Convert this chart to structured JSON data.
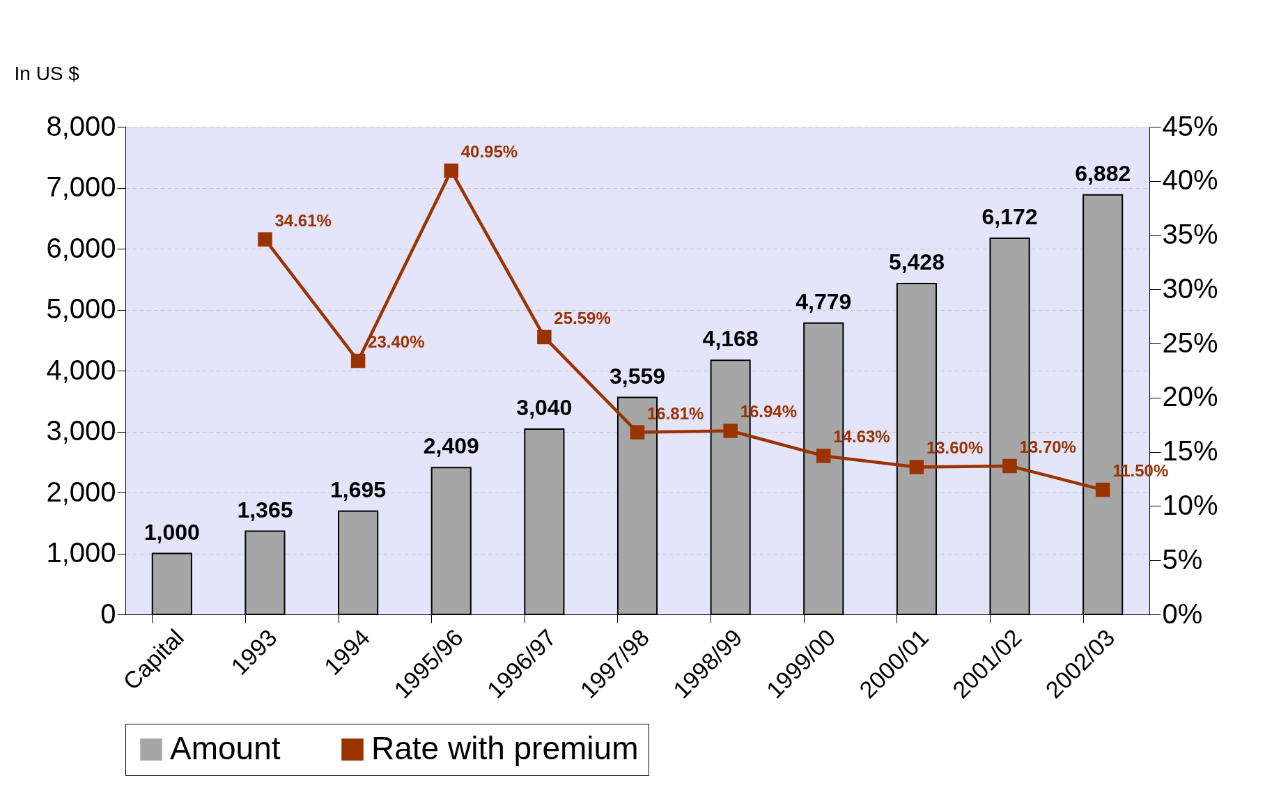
{
  "chart_data": {
    "type": "bar",
    "ylabel": "In US $",
    "categories": [
      "Capital",
      "1993",
      "1994",
      "1995/96",
      "1996/97",
      "1997/98",
      "1998/99",
      "1999/00",
      "2000/01",
      "2001/02",
      "2002/03"
    ],
    "series": [
      {
        "name": "Amount",
        "color": "#a6a6a6",
        "values": [
          1000,
          1365,
          1695,
          2409,
          3040,
          3559,
          4168,
          4779,
          5428,
          6172,
          6882
        ],
        "value_labels": [
          "1,000",
          "1,365",
          "1,695",
          "2,409",
          "3,040",
          "3,559",
          "4,168",
          "4,779",
          "5,428",
          "6,172",
          "6,882"
        ]
      },
      {
        "name": "Rate with premium",
        "type": "line",
        "axis": "y2",
        "color": "#993300",
        "marker": "square",
        "values": [
          null,
          34.61,
          23.4,
          40.95,
          25.59,
          16.81,
          16.94,
          14.63,
          13.6,
          13.7,
          11.5
        ],
        "value_labels": [
          null,
          "34.61%",
          "23.40%",
          "40.95%",
          "25.59%",
          "16.81%",
          "16.94%",
          "14.63%",
          "13.60%",
          "13.70%",
          "11.50%"
        ]
      }
    ],
    "ylim": [
      0,
      8000
    ],
    "yticks": [
      {
        "value": 0,
        "label": "0"
      },
      {
        "value": 1000,
        "label": "1,000"
      },
      {
        "value": 2000,
        "label": "2,000"
      },
      {
        "value": 3000,
        "label": "3,000"
      },
      {
        "value": 4000,
        "label": "4,000"
      },
      {
        "value": 5000,
        "label": "5,000"
      },
      {
        "value": 6000,
        "label": "6,000"
      },
      {
        "value": 7000,
        "label": "7,000"
      },
      {
        "value": 8000,
        "label": "8,000"
      }
    ],
    "y2lim": [
      0,
      45
    ],
    "y2ticks": [
      {
        "value": 0,
        "label": "0%"
      },
      {
        "value": 5,
        "label": "5%"
      },
      {
        "value": 10,
        "label": "10%"
      },
      {
        "value": 15,
        "label": "15%"
      },
      {
        "value": 20,
        "label": "20%"
      },
      {
        "value": 25,
        "label": "25%"
      },
      {
        "value": 30,
        "label": "30%"
      },
      {
        "value": 35,
        "label": "35%"
      },
      {
        "value": 40,
        "label": "40%"
      },
      {
        "value": 45,
        "label": "45%"
      }
    ],
    "grid": "y",
    "legend": "bottom"
  }
}
